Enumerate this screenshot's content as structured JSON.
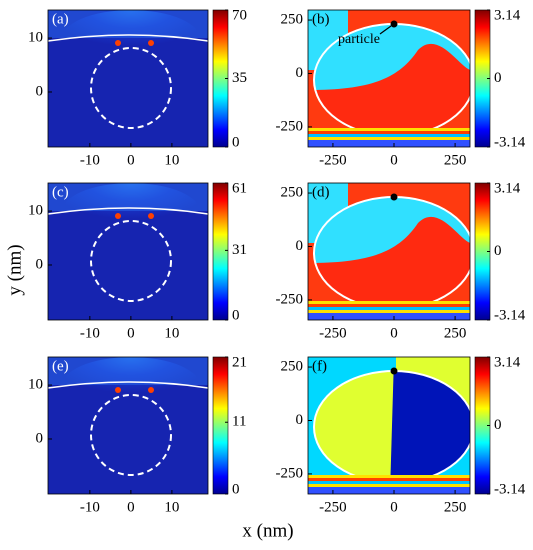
{
  "xlabel": "x (nm)",
  "ylabel": "y (nm)",
  "chart_data": [
    {
      "type": "heatmap",
      "panel": "(a)",
      "xlim": [
        -20.2,
        18.8
      ],
      "ylim": [
        -10.2,
        15.2
      ],
      "xticks": [
        -10,
        0,
        10
      ],
      "yticks": [
        0,
        10
      ],
      "clim": [
        0,
        70
      ],
      "cticks": [
        0,
        35,
        70
      ]
    },
    {
      "type": "heatmap",
      "panel": "(b)",
      "annotation": "particle",
      "xlim": [
        -352,
        311
      ],
      "ylim": [
        -344,
        297
      ],
      "xticks": [
        -250,
        0,
        250
      ],
      "yticks": [
        -250,
        0,
        250
      ],
      "clim": [
        -3.14,
        3.14
      ],
      "cticks": [
        -3.14,
        0,
        3.14
      ]
    },
    {
      "type": "heatmap",
      "panel": "(c)",
      "xlim": [
        -20.2,
        18.8
      ],
      "ylim": [
        -10.2,
        15.2
      ],
      "xticks": [
        -10,
        0,
        10
      ],
      "yticks": [
        0,
        10
      ],
      "clim": [
        0,
        61
      ],
      "cticks": [
        0,
        31,
        61
      ]
    },
    {
      "type": "heatmap",
      "panel": "(d)",
      "xlim": [
        -352,
        311
      ],
      "ylim": [
        -344,
        297
      ],
      "xticks": [
        -250,
        0,
        250
      ],
      "yticks": [
        -250,
        0,
        250
      ],
      "clim": [
        -3.14,
        3.14
      ],
      "cticks": [
        -3.14,
        0,
        3.14
      ]
    },
    {
      "type": "heatmap",
      "panel": "(e)",
      "xlim": [
        -20.2,
        18.8
      ],
      "ylim": [
        -10.2,
        15.2
      ],
      "xticks": [
        -10,
        0,
        10
      ],
      "yticks": [
        0,
        10
      ],
      "clim": [
        0,
        21
      ],
      "cticks": [
        0,
        11,
        21
      ]
    },
    {
      "type": "heatmap",
      "panel": "(f)",
      "xlim": [
        -352,
        311
      ],
      "ylim": [
        -344,
        297
      ],
      "xticks": [
        -250,
        0,
        250
      ],
      "yticks": [
        -250,
        0,
        250
      ],
      "clim": [
        -3.14,
        3.14
      ],
      "cticks": [
        -3.14,
        0,
        3.14
      ]
    }
  ]
}
